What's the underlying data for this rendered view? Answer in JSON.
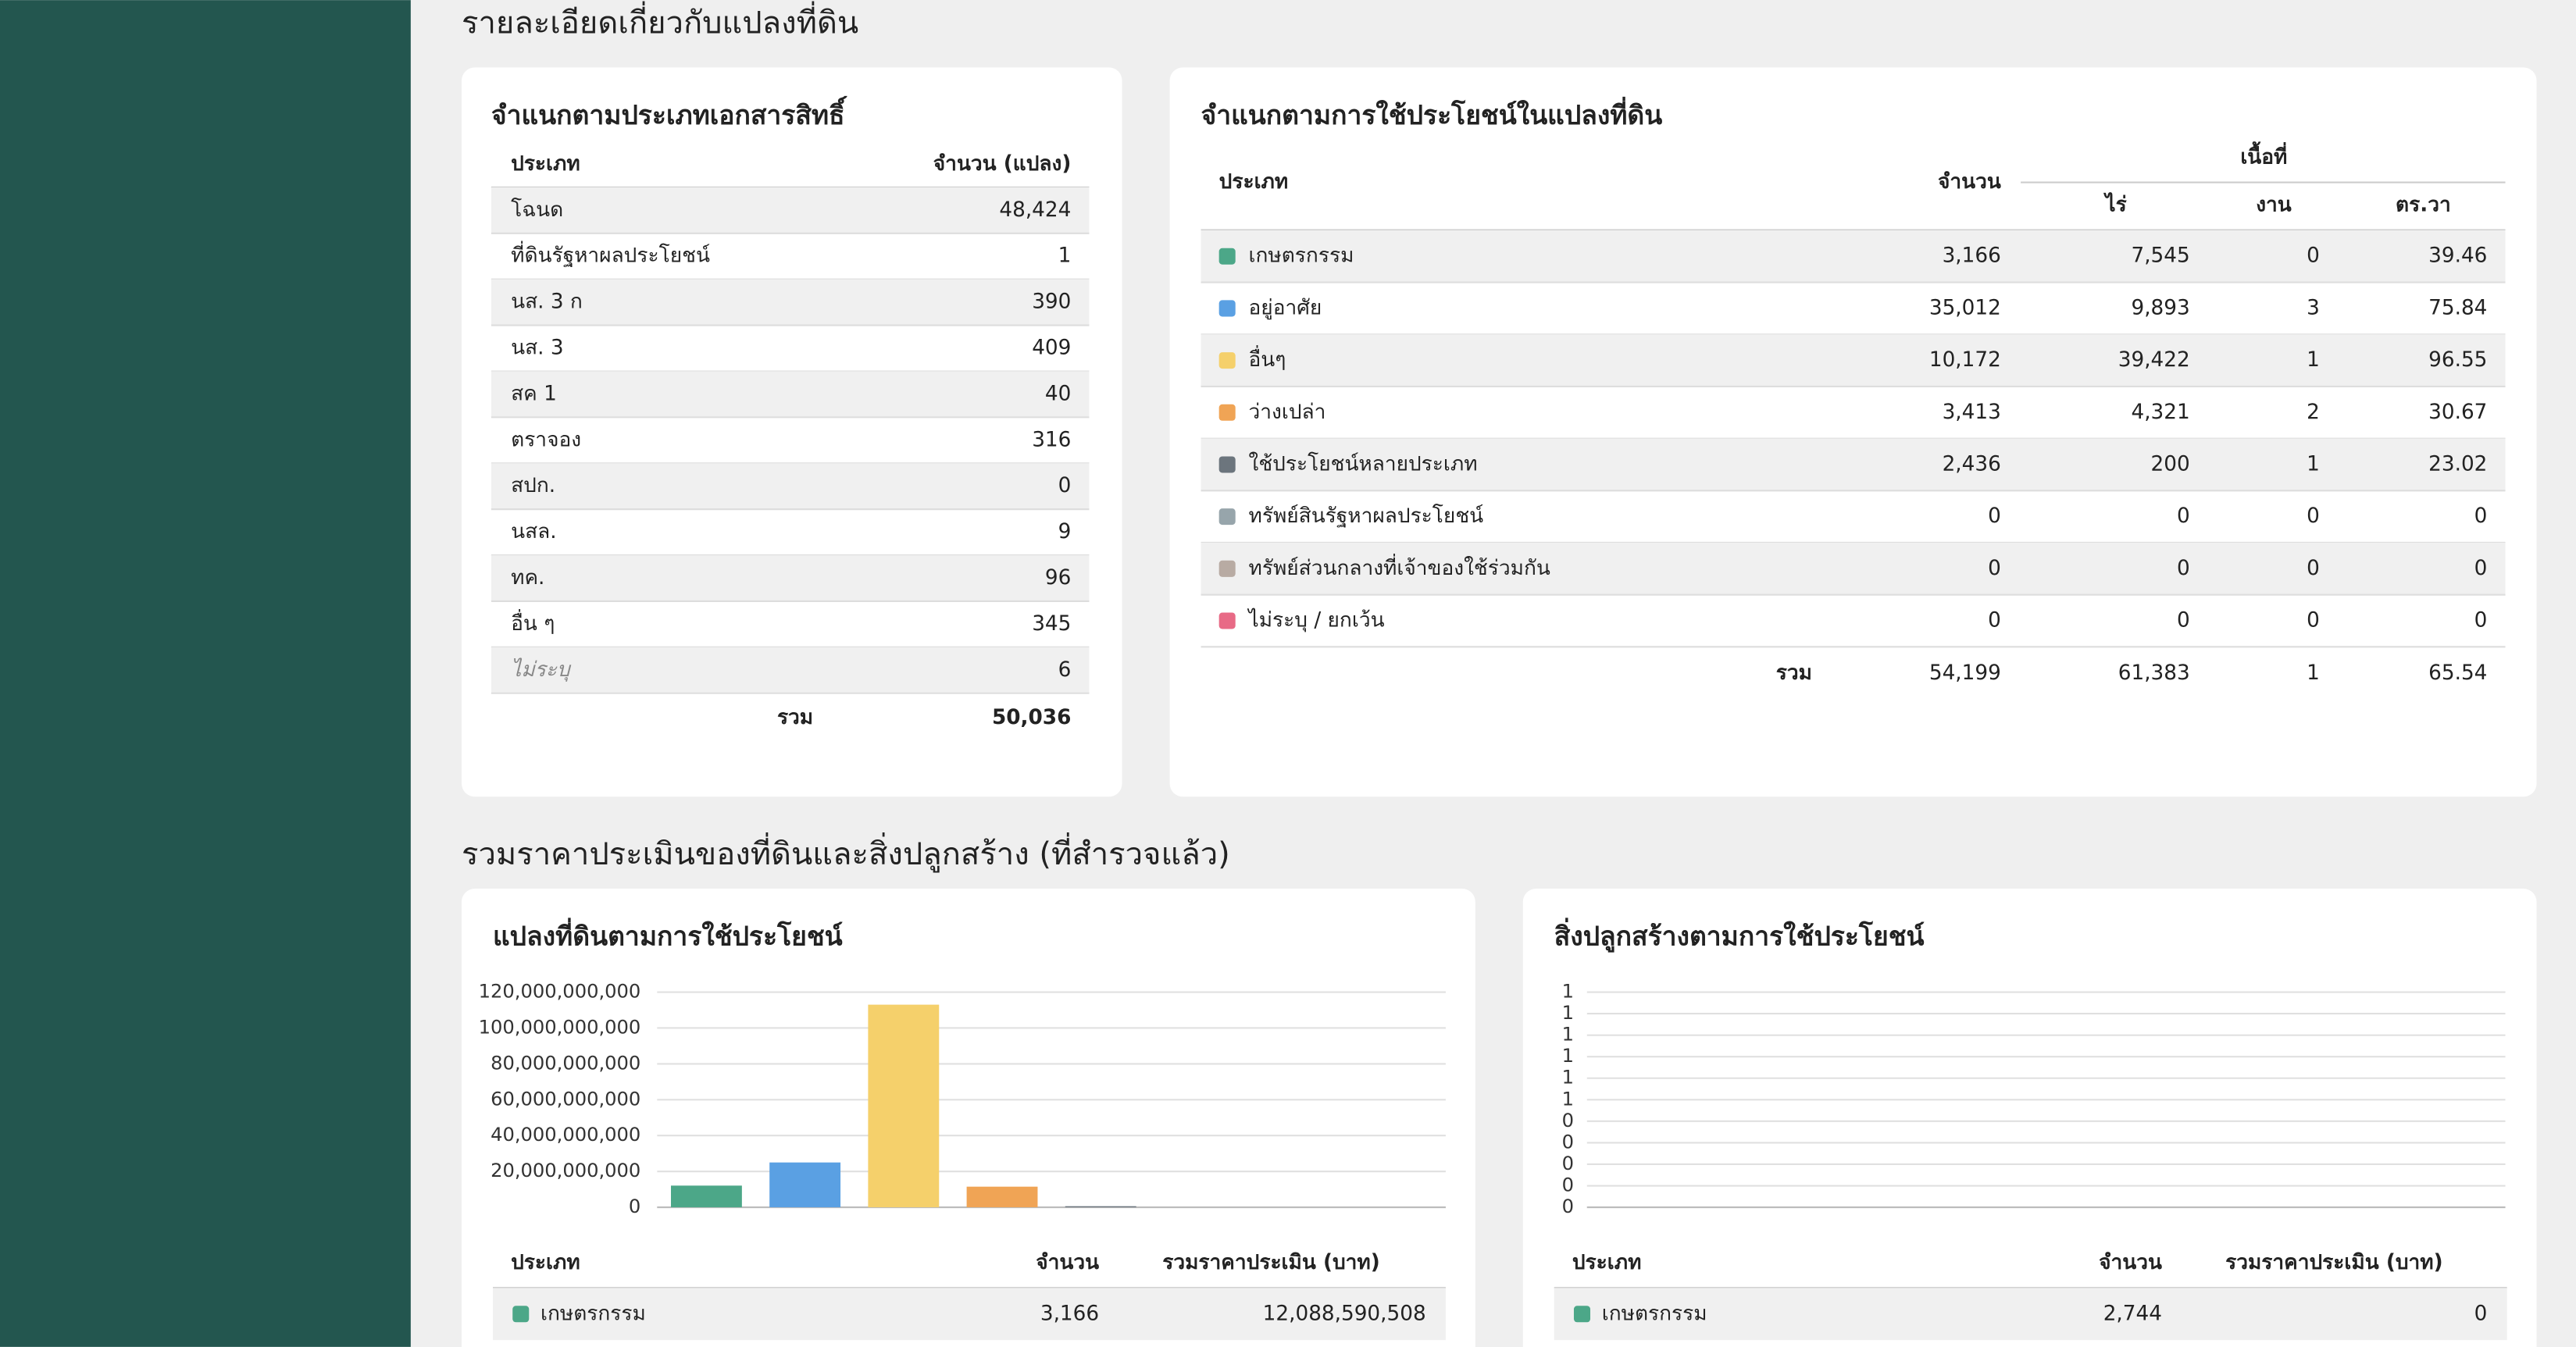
{
  "land_details": {
    "title": "รายละเอียดเกี่ยวกับแปลงที่ดิน",
    "by_document": {
      "title": "จำแนกตามประเภทเอกสารสิทธิ์",
      "columns": [
        "ประเภท",
        "จำนวน (แปลง)"
      ],
      "rows": [
        [
          "โฉนด",
          "48,424"
        ],
        [
          "ที่ดินรัฐหาผลประโยชน์",
          "1"
        ],
        [
          "นส. 3 ก",
          "390"
        ],
        [
          "นส. 3",
          "409"
        ],
        [
          "สค 1",
          "40"
        ],
        [
          "ตราจอง",
          "316"
        ],
        [
          "สปก.",
          "0"
        ],
        [
          "นสล.",
          "9"
        ],
        [
          "ทค.",
          "96"
        ],
        [
          "อื่น ๆ",
          "345"
        ],
        [
          "ไม่ระบุ",
          "6"
        ]
      ],
      "total_label": "รวม",
      "total": "50,036"
    },
    "by_use": {
      "title": "จำแนกตามการใช้ประโยชน์ในแปลงที่ดิน",
      "columns": {
        "type": "ประเภท",
        "count": "จำนวน",
        "area": "เนื้อที่",
        "rai": "ไร่",
        "ngan": "งาน",
        "wa": "ตร.วา"
      },
      "rows": [
        {
          "name": "เกษตรกรรม",
          "color": "#4ca788",
          "count": "3,166",
          "rai": "7,545",
          "ngan": "0",
          "wa": "39.46"
        },
        {
          "name": "อยู่อาศัย",
          "color": "#5aa0e3",
          "count": "35,012",
          "rai": "9,893",
          "ngan": "3",
          "wa": "75.84"
        },
        {
          "name": "อื่นๆ",
          "color": "#f5d06b",
          "count": "10,172",
          "rai": "39,422",
          "ngan": "1",
          "wa": "96.55"
        },
        {
          "name": "ว่างเปล่า",
          "color": "#f0a455",
          "count": "3,413",
          "rai": "4,321",
          "ngan": "2",
          "wa": "30.67"
        },
        {
          "name": "ใช้ประโยชน์หลายประเภท",
          "color": "#6c757d",
          "count": "2,436",
          "rai": "200",
          "ngan": "1",
          "wa": "23.02"
        },
        {
          "name": "ทรัพย์สินรัฐหาผลประโยชน์",
          "color": "#97a5ab",
          "count": "0",
          "rai": "0",
          "ngan": "0",
          "wa": "0"
        },
        {
          "name": "ทรัพย์ส่วนกลางที่เจ้าของใช้ร่วมกัน",
          "color": "#b8aba3",
          "count": "0",
          "rai": "0",
          "ngan": "0",
          "wa": "0"
        },
        {
          "name": "ไม่ระบุ / ยกเว้น",
          "color": "#e86a86",
          "count": "0",
          "rai": "0",
          "ngan": "0",
          "wa": "0"
        }
      ],
      "total": {
        "label": "รวม",
        "count": "54,199",
        "rai": "61,383",
        "ngan": "1",
        "wa": "65.54"
      }
    }
  },
  "valuation": {
    "title": "รวมราคาประเมินของที่ดินและสิ่งปลูกสร้าง (ที่สำรวจแล้ว)",
    "land": {
      "title": "แปลงที่ดินตามการใช้ประโยชน์",
      "chart_data": {
        "type": "bar",
        "categories": [
          null,
          null,
          null,
          null,
          null,
          null,
          null,
          null
        ],
        "values": [
          12088590508,
          25000000000,
          113000000000,
          11500000000,
          600000000,
          0,
          0,
          0
        ],
        "colors": [
          "#4ca788",
          "#5aa0e3",
          "#f5d06b",
          "#f0a455",
          "#6c757d",
          "#97a5ab",
          "#b8aba3",
          "#e86a86"
        ],
        "ylim": [
          0,
          120000000000
        ],
        "yticks": [
          0,
          {
            "value": 20000000000,
            "label": "20,000,000,000"
          },
          {
            "value": 40000000000,
            "label": "40,000,000,000"
          },
          {
            "value": 60000000000,
            "label": "60,000,000,000"
          },
          {
            "value": 80000000000,
            "label": "80,000,000,000"
          },
          {
            "value": 100000000000,
            "label": "100,000,000,000"
          },
          {
            "value": 120000000000,
            "label": "120,000,000,000"
          }
        ],
        "grid": true
      },
      "table": {
        "columns": [
          "ประเภท",
          "จำนวน",
          "รวมราคาประเมิน (บาท)"
        ],
        "rows": [
          {
            "name": "เกษตรกรรม",
            "color": "#4ca788",
            "count": "3,166",
            "value": "12,088,590,508"
          }
        ]
      }
    },
    "buildings": {
      "title": "สิ่งปลูกสร้างตามการใช้ประโยชน์",
      "chart_data": {
        "type": "bar",
        "categories": [
          null,
          null,
          null,
          null,
          null,
          null,
          null,
          null
        ],
        "values": [
          0,
          0,
          0,
          0,
          0,
          0,
          0,
          0
        ],
        "colors": [
          "#4ca788",
          "#5aa0e3",
          "#f5d06b",
          "#f0a455",
          "#6c757d",
          "#97a5ab",
          "#b8aba3",
          "#e86a86"
        ],
        "ylim": [
          0,
          1
        ],
        "yticks": [
          0,
          {
            "value": 0.1,
            "label": "0"
          },
          {
            "value": 0.2,
            "label": "0"
          },
          {
            "value": 0.3,
            "label": "0"
          },
          {
            "value": 0.4,
            "label": "0"
          },
          {
            "value": 0.5,
            "label": "1"
          },
          {
            "value": 0.6,
            "label": "1"
          },
          {
            "value": 0.7,
            "label": "1"
          },
          {
            "value": 0.8,
            "label": "1"
          },
          {
            "value": 0.9,
            "label": "1"
          },
          1
        ],
        "grid": true
      },
      "table": {
        "columns": [
          "ประเภท",
          "จำนวน",
          "รวมราคาประเมิน (บาท)"
        ],
        "rows": [
          {
            "name": "เกษตรกรรม",
            "color": "#4ca788",
            "count": "2,744",
            "value": "0"
          }
        ]
      }
    }
  }
}
